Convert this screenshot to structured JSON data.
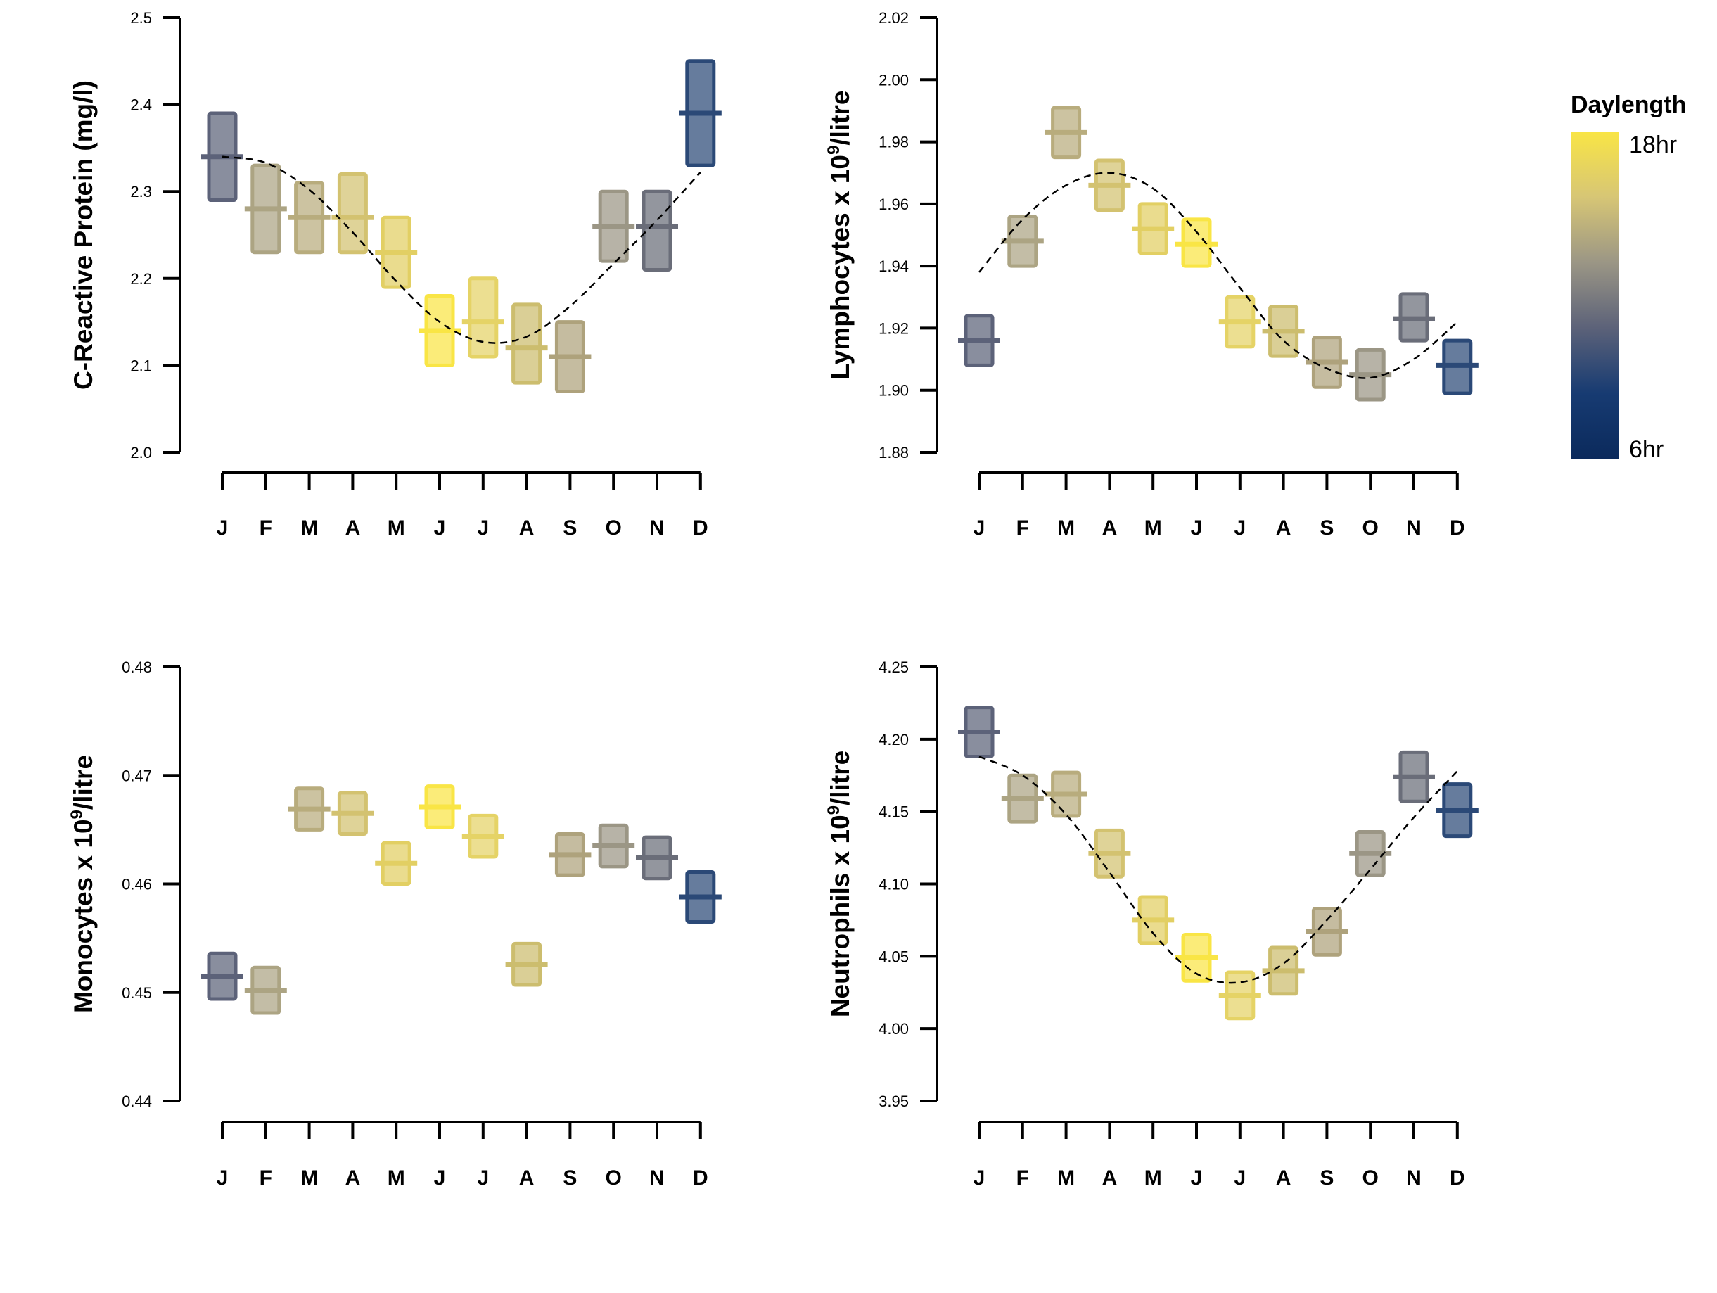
{
  "legend": {
    "title": "Daylength",
    "max_label": "18hr",
    "min_label": "6hr",
    "colors": [
      "#f9e545",
      "#d7c675",
      "#9b9685",
      "#5c6279",
      "#173b72",
      "#0b2a5c"
    ]
  },
  "chart_data": [
    {
      "type": "scatter",
      "panel": "top-left",
      "ylabel": "C-Reactive Protein (mg/l)",
      "ylim": [
        2.0,
        2.5
      ],
      "yticks": [
        "2.0",
        "2.1",
        "2.2",
        "2.3",
        "2.4",
        "2.5"
      ],
      "categories": [
        "J",
        "F",
        "M",
        "A",
        "M",
        "J",
        "J",
        "A",
        "S",
        "O",
        "N",
        "D"
      ],
      "values": [
        2.34,
        2.28,
        2.27,
        2.27,
        2.23,
        2.14,
        2.15,
        2.12,
        2.11,
        2.26,
        2.26,
        2.39
      ],
      "lower": [
        2.29,
        2.23,
        2.23,
        2.23,
        2.19,
        2.1,
        2.11,
        2.08,
        2.07,
        2.22,
        2.21,
        2.33
      ],
      "upper": [
        2.39,
        2.33,
        2.31,
        2.32,
        2.27,
        2.18,
        2.2,
        2.17,
        2.15,
        2.3,
        2.3,
        2.45
      ],
      "colors": [
        "#5c6279",
        "#aca483",
        "#b8ac7d",
        "#d3c270",
        "#e2cf63",
        "#f9e545",
        "#e5d366",
        "#ccbd6e",
        "#aea27c",
        "#9b9685",
        "#6a6d79",
        "#2b4977"
      ],
      "trend": [
        2.34,
        2.333,
        2.302,
        2.253,
        2.197,
        2.15,
        2.127,
        2.133,
        2.168,
        2.217,
        2.267,
        2.322
      ]
    },
    {
      "type": "scatter",
      "panel": "top-right",
      "ylabel": "Lymphocytes x 10",
      "ylabel_sup": "9",
      "ylabel_suffix": "/litre",
      "ylim": [
        1.88,
        2.02
      ],
      "yticks": [
        "1.88",
        "1.90",
        "1.92",
        "1.94",
        "1.96",
        "1.98",
        "2.00",
        "2.02"
      ],
      "categories": [
        "J",
        "F",
        "M",
        "A",
        "M",
        "J",
        "J",
        "A",
        "S",
        "O",
        "N",
        "D"
      ],
      "values": [
        1.916,
        1.948,
        1.983,
        1.966,
        1.952,
        1.947,
        1.922,
        1.919,
        1.909,
        1.905,
        1.923,
        1.908
      ],
      "lower": [
        1.908,
        1.94,
        1.975,
        1.958,
        1.944,
        1.94,
        1.914,
        1.911,
        1.901,
        1.897,
        1.916,
        1.899
      ],
      "upper": [
        1.924,
        1.956,
        1.991,
        1.974,
        1.96,
        1.955,
        1.93,
        1.927,
        1.917,
        1.913,
        1.931,
        1.916
      ],
      "colors": [
        "#5c6279",
        "#aca483",
        "#b8ac7d",
        "#d3c270",
        "#e2cf63",
        "#f9e545",
        "#e5d366",
        "#ccbd6e",
        "#aea27c",
        "#9b9685",
        "#6a6d79",
        "#2b4977"
      ],
      "trend": [
        1.938,
        1.955,
        1.966,
        1.97,
        1.965,
        1.951,
        1.933,
        1.916,
        1.907,
        1.904,
        1.91,
        1.922
      ]
    },
    {
      "type": "scatter",
      "panel": "bottom-left",
      "ylabel": "Monocytes x 10",
      "ylabel_sup": "9",
      "ylabel_suffix": "/litre",
      "ylim": [
        0.44,
        0.48
      ],
      "yticks": [
        "0.44",
        "0.45",
        "0.46",
        "0.47",
        "0.48"
      ],
      "categories": [
        "J",
        "F",
        "M",
        "A",
        "M",
        "J",
        "J",
        "A",
        "S",
        "O",
        "N",
        "D"
      ],
      "values": [
        0.4515,
        0.4502,
        0.4669,
        0.4665,
        0.4619,
        0.4671,
        0.4644,
        0.4526,
        0.4627,
        0.4635,
        0.4624,
        0.4588
      ],
      "lower": [
        0.4494,
        0.4481,
        0.465,
        0.4646,
        0.46,
        0.4652,
        0.4625,
        0.4507,
        0.4608,
        0.4616,
        0.4605,
        0.4565
      ],
      "upper": [
        0.4536,
        0.4523,
        0.4688,
        0.4684,
        0.4638,
        0.469,
        0.4663,
        0.4545,
        0.4646,
        0.4654,
        0.4643,
        0.4611
      ],
      "colors": [
        "#5c6279",
        "#aca483",
        "#b8ac7d",
        "#d3c270",
        "#e2cf63",
        "#f9e545",
        "#e5d366",
        "#ccbd6e",
        "#aea27c",
        "#9b9685",
        "#6a6d79",
        "#2b4977"
      ]
    },
    {
      "type": "scatter",
      "panel": "bottom-right",
      "ylabel": "Neutrophils x 10",
      "ylabel_sup": "9",
      "ylabel_suffix": "/litre",
      "ylim": [
        3.95,
        4.25
      ],
      "yticks": [
        "3.95",
        "4.00",
        "4.05",
        "4.10",
        "4.15",
        "4.20",
        "4.25"
      ],
      "categories": [
        "J",
        "F",
        "M",
        "A",
        "M",
        "J",
        "J",
        "A",
        "S",
        "O",
        "N",
        "D"
      ],
      "values": [
        4.205,
        4.159,
        4.162,
        4.121,
        4.075,
        4.049,
        4.023,
        4.04,
        4.067,
        4.121,
        4.174,
        4.151
      ],
      "lower": [
        4.188,
        4.143,
        4.147,
        4.105,
        4.059,
        4.033,
        4.007,
        4.024,
        4.051,
        4.106,
        4.157,
        4.133
      ],
      "upper": [
        4.222,
        4.175,
        4.177,
        4.137,
        4.091,
        4.065,
        4.039,
        4.056,
        4.083,
        4.136,
        4.191,
        4.169
      ],
      "colors": [
        "#5c6279",
        "#aca483",
        "#b8ac7d",
        "#d3c270",
        "#e2cf63",
        "#f9e545",
        "#e5d366",
        "#ccbd6e",
        "#aea27c",
        "#9b9685",
        "#6a6d79",
        "#2b4977"
      ],
      "trend": [
        4.188,
        4.175,
        4.148,
        4.108,
        4.066,
        4.038,
        4.032,
        4.045,
        4.075,
        4.11,
        4.146,
        4.178
      ]
    }
  ]
}
